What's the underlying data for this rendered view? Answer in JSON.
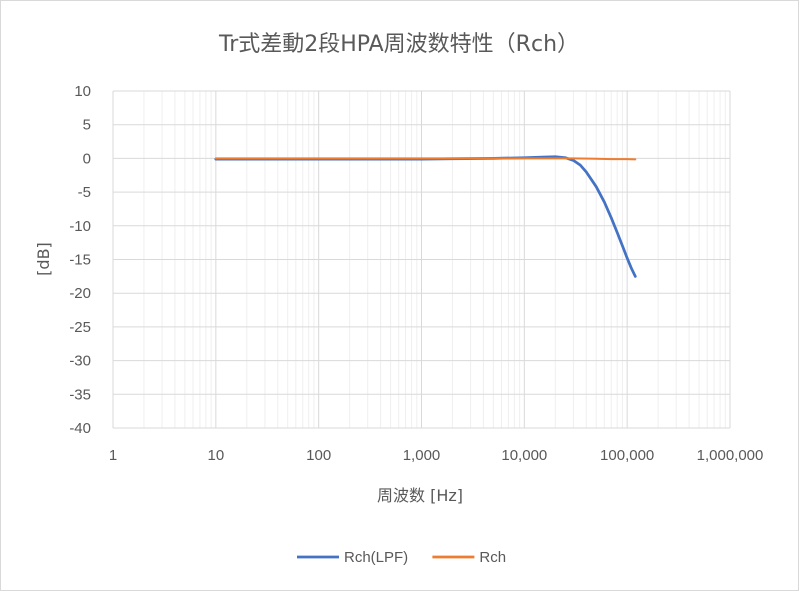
{
  "chart_data": {
    "type": "line",
    "title": "Tr式差動2段HPA周波数特性（Rch）",
    "xlabel": "周波数 [Hz]",
    "ylabel": "[dB]",
    "x_scale": "log",
    "xlim": [
      1,
      1000000
    ],
    "ylim": [
      -40,
      10
    ],
    "y_step": 5,
    "x_tick_labels": [
      "1",
      "10",
      "100",
      "1,000",
      "10,000",
      "100,000",
      "1,000,000"
    ],
    "y_tick_labels": [
      "10",
      "5",
      "0",
      "-5",
      "-10",
      "-15",
      "-20",
      "-25",
      "-30",
      "-35",
      "-40"
    ],
    "grid": true,
    "legend_position": "bottom",
    "series": [
      {
        "name": "Rch(LPF)",
        "color": "#4472C4",
        "x": [
          10,
          20,
          50,
          100,
          200,
          500,
          1000,
          2000,
          5000,
          10000,
          15000,
          20000,
          25000,
          30000,
          35000,
          40000,
          50000,
          60000,
          70000,
          80000,
          90000,
          100000,
          110000,
          120000
        ],
        "y": [
          -0.1,
          -0.1,
          -0.1,
          -0.1,
          -0.1,
          -0.1,
          -0.1,
          -0.05,
          0.0,
          0.1,
          0.2,
          0.25,
          0.1,
          -0.3,
          -1.0,
          -2.0,
          -4.2,
          -6.5,
          -8.8,
          -11.0,
          -13.0,
          -14.8,
          -16.3,
          -17.5
        ]
      },
      {
        "name": "Rch",
        "color": "#ED7D31",
        "x": [
          10,
          20,
          50,
          100,
          200,
          500,
          1000,
          2000,
          5000,
          10000,
          20000,
          30000,
          50000,
          70000,
          100000,
          120000
        ],
        "y": [
          0.0,
          0.0,
          0.0,
          0.0,
          0.0,
          0.0,
          0.0,
          0.0,
          0.0,
          0.0,
          0.0,
          0.0,
          -0.05,
          -0.1,
          -0.1,
          -0.15
        ]
      }
    ]
  }
}
